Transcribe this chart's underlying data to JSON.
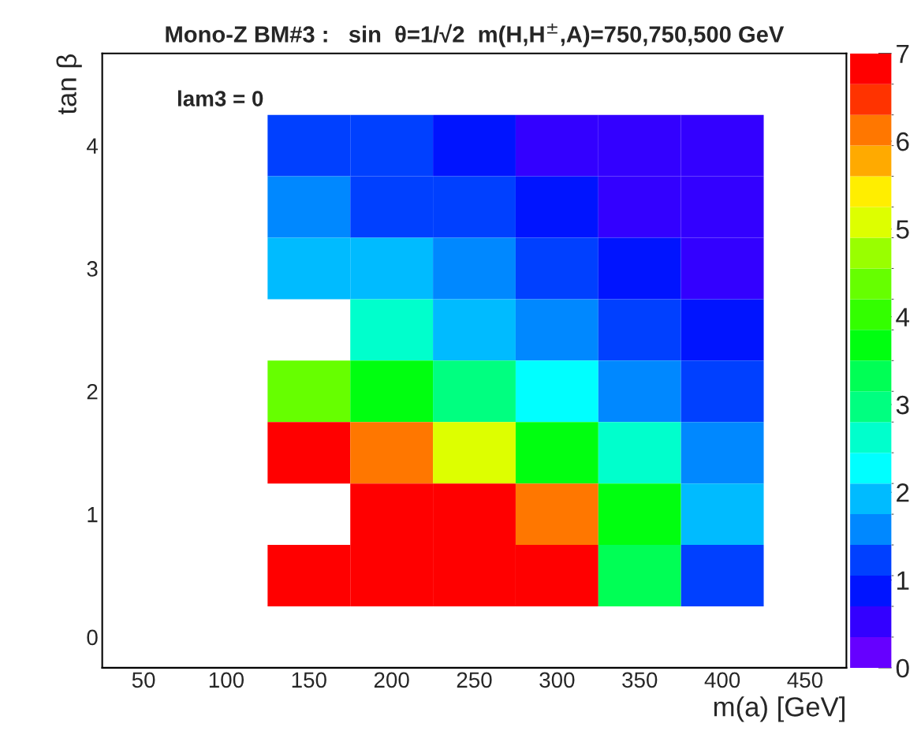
{
  "chart_data": {
    "type": "heatmap",
    "title": "Mono-Z BM#3 :   sin  θ=1/√2  m(H,H$^{±}$,A)=750,750,500 GeV",
    "xlabel": "m(a) [GeV]",
    "ylabel": "tan β",
    "annotations": [
      "lam3 = 0"
    ],
    "x": [
      150,
      200,
      250,
      300,
      350,
      400
    ],
    "y": [
      4.0,
      3.5,
      3.0,
      2.5,
      2.0,
      1.5,
      1.0,
      0.5
    ],
    "cells": [
      [
        1.2,
        1.2,
        0.9,
        0.5,
        0.5,
        0.5
      ],
      [
        1.6,
        1.2,
        1.2,
        0.9,
        0.5,
        0.5
      ],
      [
        1.9,
        1.9,
        1.6,
        1.2,
        0.9,
        0.5
      ],
      [
        null,
        2.6,
        1.9,
        1.6,
        1.2,
        0.9
      ],
      [
        4.4,
        3.7,
        3.0,
        2.3,
        1.6,
        1.2
      ],
      [
        6.8,
        6.1,
        5.1,
        3.7,
        2.6,
        1.6
      ],
      [
        null,
        6.8,
        6.8,
        6.1,
        3.7,
        1.9
      ],
      [
        6.8,
        6.8,
        6.8,
        6.8,
        3.3,
        1.2
      ]
    ],
    "colors": [
      "#6600ff",
      "#3300ff",
      "#0014ff",
      "#0040ff",
      "#0088ff",
      "#00bbff",
      "#00ffff",
      "#00ffcc",
      "#00ff80",
      "#00ff55",
      "#00ff10",
      "#33ff00",
      "#66ff00",
      "#99ff00",
      "#ddff00",
      "#ffee00",
      "#ffaa00",
      "#ff7700",
      "#ff3300",
      "#ff0000"
    ],
    "xlim": [
      25,
      475
    ],
    "xticks": [
      50,
      100,
      150,
      200,
      250,
      300,
      350,
      400,
      450
    ],
    "ylim": [
      -0.25,
      4.75
    ],
    "yticks": [
      0,
      1,
      2,
      3,
      4
    ],
    "clim": [
      0,
      7
    ],
    "cticks": [
      0,
      1,
      2,
      3,
      4,
      5,
      6,
      7
    ],
    "grid": false
  }
}
